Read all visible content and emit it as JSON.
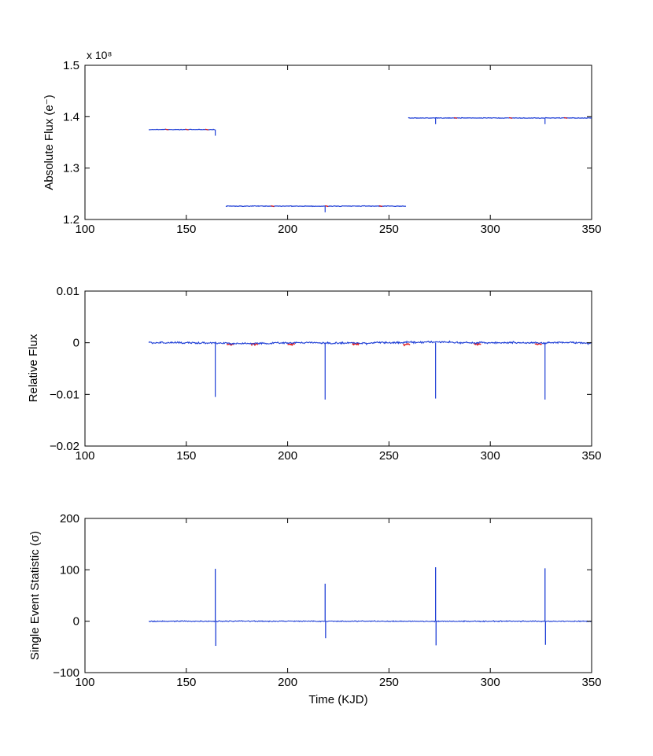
{
  "chart_data": [
    {
      "type": "line",
      "ylabel": "Absolute Flux (e⁻)",
      "xlabel": "",
      "y_exponent_label": "x 10⁸",
      "xlim": [
        100,
        350
      ],
      "ylim": [
        1.2,
        1.5
      ],
      "xticks": [
        100,
        150,
        200,
        250,
        300,
        350
      ],
      "yticks": [
        1.2,
        1.3,
        1.4,
        1.5
      ],
      "xtick_labels": [
        "100",
        "150",
        "200",
        "250",
        "300",
        "350"
      ],
      "ytick_labels": [
        "1.2",
        "1.3",
        "1.4",
        "1.5"
      ],
      "grid": false,
      "colors": {
        "primary": "#1f3fd6",
        "highlight": "#e01b1b"
      },
      "segments": [
        {
          "x_start": 131.5,
          "x_end": 164.3,
          "level": 1.375,
          "dips": [
            {
              "x": 164.3,
              "depth": 0.012
            }
          ]
        },
        {
          "x_start": 169.5,
          "x_end": 258.5,
          "level": 1.226,
          "dips": [
            {
              "x": 218.5,
              "depth": 0.012
            }
          ]
        },
        {
          "x_start": 259.5,
          "x_end": 350,
          "level": 1.3975,
          "dips": [
            {
              "x": 273,
              "depth": 0.012
            },
            {
              "x": 327,
              "depth": 0.012
            }
          ]
        }
      ]
    },
    {
      "type": "line",
      "ylabel": "Relative Flux",
      "xlabel": "",
      "xlim": [
        100,
        350
      ],
      "ylim": [
        -0.02,
        0.01
      ],
      "xticks": [
        100,
        150,
        200,
        250,
        300,
        350
      ],
      "yticks": [
        -0.02,
        -0.01,
        0,
        0.01
      ],
      "xtick_labels": [
        "100",
        "150",
        "200",
        "250",
        "300",
        "350"
      ],
      "ytick_labels": [
        "−0.02",
        "−0.01",
        "0",
        "0.01"
      ],
      "grid": false,
      "colors": {
        "primary": "#1f3fd6",
        "highlight": "#e01b1b"
      },
      "x_start": 131.5,
      "x_end": 350,
      "baseline": 0,
      "transits": [
        {
          "x": 164.3,
          "y": -0.0105
        },
        {
          "x": 218.5,
          "y": -0.011
        },
        {
          "x": 273,
          "y": -0.0108
        },
        {
          "x": 327,
          "y": -0.011
        }
      ]
    },
    {
      "type": "line",
      "ylabel": "Single Event Statistic (σ)",
      "xlabel": "Time (KJD)",
      "xlim": [
        100,
        350
      ],
      "ylim": [
        -100,
        200
      ],
      "xticks": [
        100,
        150,
        200,
        250,
        300,
        350
      ],
      "yticks": [
        -100,
        0,
        100,
        200
      ],
      "xtick_labels": [
        "100",
        "150",
        "200",
        "250",
        "300",
        "350"
      ],
      "ytick_labels": [
        "−100",
        "0",
        "100",
        "200"
      ],
      "grid": false,
      "colors": {
        "primary": "#1f3fd6"
      },
      "x_start": 131.5,
      "x_end": 350,
      "baseline": 0,
      "events": [
        {
          "x": 164.3,
          "peak": 102,
          "trough": -48
        },
        {
          "x": 218.5,
          "peak": 73,
          "trough": -33
        },
        {
          "x": 273,
          "peak": 105,
          "trough": -47
        },
        {
          "x": 327,
          "peak": 103,
          "trough": -46
        }
      ]
    }
  ]
}
